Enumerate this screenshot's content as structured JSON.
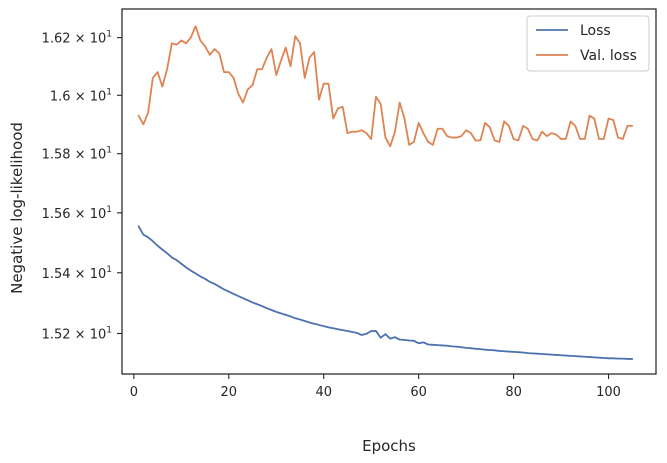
{
  "chart_data": {
    "type": "line",
    "xlabel": "Epochs",
    "ylabel": "Negative log-likelihood",
    "xlim": [
      -2.5,
      110
    ],
    "ylim": [
      15.068,
      16.3
    ],
    "x_scale": "linear",
    "y_scale": "log",
    "grid": false,
    "legend_position": "top-right",
    "x_ticks": [
      0,
      20,
      40,
      60,
      80,
      100
    ],
    "x_tick_labels": [
      "0",
      "20",
      "40",
      "60",
      "80",
      "100"
    ],
    "y_ticks": [
      15.2,
      15.4,
      15.6,
      15.8,
      16.0,
      16.2
    ],
    "y_tick_labels": [
      {
        "mantissa": "1.52",
        "base": "10",
        "exp": "1"
      },
      {
        "mantissa": "1.54",
        "base": "10",
        "exp": "1"
      },
      {
        "mantissa": "1.56",
        "base": "10",
        "exp": "1"
      },
      {
        "mantissa": "1.58",
        "base": "10",
        "exp": "1"
      },
      {
        "mantissa": "1.6",
        "base": "10",
        "exp": "1"
      },
      {
        "mantissa": "1.62",
        "base": "10",
        "exp": "1"
      }
    ],
    "series": [
      {
        "name": "Loss",
        "color": "#4c72b0",
        "x": [
          1,
          2,
          3,
          4,
          5,
          6,
          7,
          8,
          9,
          10,
          11,
          12,
          13,
          14,
          15,
          16,
          17,
          18,
          19,
          20,
          21,
          22,
          23,
          24,
          25,
          26,
          27,
          28,
          29,
          30,
          31,
          32,
          33,
          34,
          35,
          36,
          37,
          38,
          39,
          40,
          41,
          42,
          43,
          44,
          45,
          46,
          47,
          48,
          49,
          50,
          51,
          52,
          53,
          54,
          55,
          56,
          57,
          58,
          59,
          60,
          61,
          62,
          63,
          64,
          65,
          66,
          67,
          68,
          69,
          70,
          71,
          72,
          73,
          74,
          75,
          76,
          77,
          78,
          79,
          80,
          81,
          82,
          83,
          84,
          85,
          86,
          87,
          88,
          89,
          90,
          91,
          92,
          93,
          94,
          95,
          96,
          97,
          98,
          99,
          100,
          101,
          102,
          103,
          104,
          105
        ],
        "values": [
          15.555,
          15.527,
          15.518,
          15.505,
          15.49,
          15.477,
          15.465,
          15.451,
          15.442,
          15.43,
          15.418,
          15.407,
          15.398,
          15.388,
          15.38,
          15.37,
          15.363,
          15.354,
          15.345,
          15.338,
          15.33,
          15.323,
          15.316,
          15.309,
          15.302,
          15.296,
          15.29,
          15.283,
          15.277,
          15.271,
          15.266,
          15.261,
          15.256,
          15.25,
          15.246,
          15.241,
          15.236,
          15.232,
          15.228,
          15.224,
          15.22,
          15.217,
          15.214,
          15.211,
          15.208,
          15.205,
          15.202,
          15.195,
          15.199,
          15.208,
          15.208,
          15.186,
          15.198,
          15.183,
          15.188,
          15.18,
          15.179,
          15.177,
          15.176,
          15.168,
          15.171,
          15.164,
          15.163,
          15.162,
          15.161,
          15.16,
          15.158,
          15.157,
          15.155,
          15.153,
          15.152,
          15.15,
          15.149,
          15.147,
          15.146,
          15.145,
          15.143,
          15.142,
          15.141,
          15.14,
          15.139,
          15.138,
          15.136,
          15.135,
          15.134,
          15.133,
          15.132,
          15.131,
          15.13,
          15.129,
          15.128,
          15.127,
          15.126,
          15.125,
          15.124,
          15.123,
          15.122,
          15.121,
          15.12,
          15.119,
          15.119,
          15.118,
          15.118,
          15.117,
          15.117
        ]
      },
      {
        "name": "Val. loss",
        "color": "#dd8452",
        "x": [
          1,
          2,
          3,
          4,
          5,
          6,
          7,
          8,
          9,
          10,
          11,
          12,
          13,
          14,
          15,
          16,
          17,
          18,
          19,
          20,
          21,
          22,
          23,
          24,
          25,
          26,
          27,
          28,
          29,
          30,
          31,
          32,
          33,
          34,
          35,
          36,
          37,
          38,
          39,
          40,
          41,
          42,
          43,
          44,
          45,
          46,
          47,
          48,
          49,
          50,
          51,
          52,
          53,
          54,
          55,
          56,
          57,
          58,
          59,
          60,
          61,
          62,
          63,
          64,
          65,
          66,
          67,
          68,
          69,
          70,
          71,
          72,
          73,
          74,
          75,
          76,
          77,
          78,
          79,
          80,
          81,
          82,
          83,
          84,
          85,
          86,
          87,
          88,
          89,
          90,
          91,
          92,
          93,
          94,
          95,
          96,
          97,
          98,
          99,
          100,
          101,
          102,
          103,
          104,
          105
        ],
        "values": [
          15.93,
          15.9,
          15.94,
          16.06,
          16.08,
          16.03,
          16.09,
          16.18,
          16.175,
          16.19,
          16.18,
          16.2,
          16.24,
          16.19,
          16.17,
          16.14,
          16.16,
          16.145,
          16.08,
          16.08,
          16.06,
          16.005,
          15.975,
          16.02,
          16.035,
          16.09,
          16.09,
          16.13,
          16.16,
          16.07,
          16.12,
          16.165,
          16.1,
          16.205,
          16.18,
          16.06,
          16.13,
          16.15,
          15.985,
          16.04,
          16.04,
          15.92,
          15.955,
          15.96,
          15.87,
          15.875,
          15.875,
          15.88,
          15.87,
          15.85,
          15.995,
          15.97,
          15.855,
          15.825,
          15.875,
          15.975,
          15.92,
          15.83,
          15.84,
          15.905,
          15.87,
          15.84,
          15.83,
          15.885,
          15.885,
          15.86,
          15.855,
          15.855,
          15.86,
          15.88,
          15.87,
          15.845,
          15.845,
          15.905,
          15.89,
          15.845,
          15.84,
          15.91,
          15.895,
          15.85,
          15.845,
          15.895,
          15.885,
          15.85,
          15.845,
          15.875,
          15.86,
          15.87,
          15.865,
          15.85,
          15.85,
          15.91,
          15.895,
          15.85,
          15.85,
          15.93,
          15.92,
          15.85,
          15.85,
          15.92,
          15.915,
          15.855,
          15.85,
          15.895,
          15.895
        ]
      }
    ]
  }
}
